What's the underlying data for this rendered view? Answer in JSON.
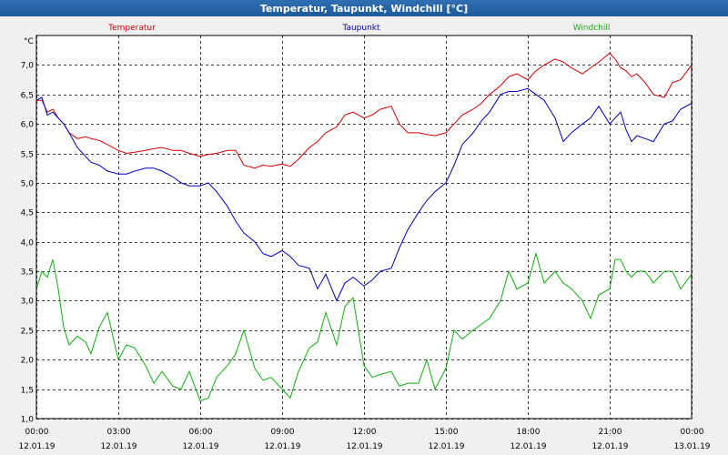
{
  "chart_data": {
    "type": "line",
    "title": "Temperatur, Taupunkt, Windchill [°C]",
    "ylabel": "°C",
    "ylim": [
      1.0,
      7.5
    ],
    "xlim_hours": [
      0,
      24
    ],
    "grid": true,
    "y_ticks": [
      "1,0",
      "1,5",
      "2,0",
      "2,5",
      "3,0",
      "3,5",
      "4,0",
      "4,5",
      "5,0",
      "5,5",
      "6,0",
      "6,5",
      "7,0"
    ],
    "y_tick_values": [
      1.0,
      1.5,
      2.0,
      2.5,
      3.0,
      3.5,
      4.0,
      4.5,
      5.0,
      5.5,
      6.0,
      6.5,
      7.0
    ],
    "x_ticks": [
      {
        "hour": 0,
        "time": "00:00",
        "date": "12.01.19"
      },
      {
        "hour": 3,
        "time": "03:00",
        "date": "12.01.19"
      },
      {
        "hour": 6,
        "time": "06:00",
        "date": "12.01.19"
      },
      {
        "hour": 9,
        "time": "09:00",
        "date": "12.01.19"
      },
      {
        "hour": 12,
        "time": "12:00",
        "date": "12.01.19"
      },
      {
        "hour": 15,
        "time": "15:00",
        "date": "12.01.19"
      },
      {
        "hour": 18,
        "time": "18:00",
        "date": "12.01.19"
      },
      {
        "hour": 21,
        "time": "21:00",
        "date": "12.01.19"
      },
      {
        "hour": 24,
        "time": "00:00",
        "date": "13.01.19"
      }
    ],
    "series": [
      {
        "name": "Temperatur",
        "color": "#d40000",
        "x": [
          0.0,
          0.2,
          0.4,
          0.6,
          0.8,
          1.0,
          1.2,
          1.5,
          1.8,
          2.0,
          2.3,
          2.6,
          3.0,
          3.3,
          3.6,
          4.0,
          4.3,
          4.6,
          5.0,
          5.3,
          5.6,
          6.0,
          6.3,
          6.6,
          7.0,
          7.3,
          7.6,
          8.0,
          8.3,
          8.6,
          9.0,
          9.3,
          9.6,
          10.0,
          10.3,
          10.6,
          11.0,
          11.3,
          11.6,
          12.0,
          12.3,
          12.6,
          13.0,
          13.3,
          13.6,
          14.0,
          14.3,
          14.6,
          15.0,
          15.3,
          15.6,
          16.0,
          16.3,
          16.6,
          17.0,
          17.3,
          17.6,
          18.0,
          18.3,
          18.6,
          19.0,
          19.3,
          19.6,
          20.0,
          20.3,
          20.6,
          21.0,
          21.2,
          21.4,
          21.6,
          21.8,
          22.0,
          22.3,
          22.6,
          23.0,
          23.3,
          23.6,
          24.0
        ],
        "values": [
          6.4,
          6.4,
          6.2,
          6.25,
          6.1,
          6.0,
          5.85,
          5.75,
          5.78,
          5.75,
          5.72,
          5.65,
          5.55,
          5.5,
          5.52,
          5.55,
          5.58,
          5.6,
          5.55,
          5.55,
          5.5,
          5.45,
          5.48,
          5.5,
          5.55,
          5.55,
          5.3,
          5.25,
          5.3,
          5.28,
          5.32,
          5.28,
          5.4,
          5.6,
          5.7,
          5.85,
          5.95,
          6.15,
          6.2,
          6.1,
          6.15,
          6.25,
          6.3,
          6.0,
          5.85,
          5.85,
          5.82,
          5.8,
          5.85,
          6.0,
          6.15,
          6.25,
          6.35,
          6.5,
          6.65,
          6.8,
          6.85,
          6.75,
          6.9,
          7.0,
          7.1,
          7.05,
          6.95,
          6.85,
          6.95,
          7.05,
          7.2,
          7.1,
          6.95,
          6.9,
          6.8,
          6.85,
          6.7,
          6.5,
          6.45,
          6.7,
          6.75,
          7.0
        ]
      },
      {
        "name": "Taupunkt",
        "color": "#0000c0",
        "x": [
          0.0,
          0.2,
          0.4,
          0.6,
          0.8,
          1.0,
          1.2,
          1.5,
          1.8,
          2.0,
          2.3,
          2.6,
          3.0,
          3.3,
          3.6,
          4.0,
          4.3,
          4.6,
          5.0,
          5.3,
          5.6,
          6.0,
          6.3,
          6.6,
          7.0,
          7.3,
          7.6,
          8.0,
          8.3,
          8.6,
          9.0,
          9.3,
          9.6,
          10.0,
          10.3,
          10.6,
          11.0,
          11.3,
          11.6,
          12.0,
          12.3,
          12.6,
          13.0,
          13.3,
          13.6,
          14.0,
          14.3,
          14.6,
          15.0,
          15.3,
          15.6,
          16.0,
          16.3,
          16.6,
          17.0,
          17.3,
          17.6,
          18.0,
          18.3,
          18.6,
          19.0,
          19.3,
          19.6,
          20.0,
          20.3,
          20.6,
          21.0,
          21.2,
          21.4,
          21.6,
          21.8,
          22.0,
          22.3,
          22.6,
          23.0,
          23.3,
          23.6,
          24.0
        ],
        "values": [
          6.4,
          6.45,
          6.15,
          6.2,
          6.1,
          6.0,
          5.85,
          5.6,
          5.45,
          5.35,
          5.3,
          5.2,
          5.15,
          5.15,
          5.2,
          5.25,
          5.25,
          5.2,
          5.1,
          5.0,
          4.95,
          4.95,
          5.0,
          4.85,
          4.6,
          4.35,
          4.15,
          4.0,
          3.8,
          3.75,
          3.85,
          3.75,
          3.6,
          3.55,
          3.2,
          3.45,
          3.0,
          3.3,
          3.4,
          3.25,
          3.35,
          3.5,
          3.55,
          3.9,
          4.2,
          4.5,
          4.7,
          4.85,
          5.0,
          5.3,
          5.65,
          5.85,
          6.05,
          6.2,
          6.5,
          6.55,
          6.55,
          6.6,
          6.5,
          6.4,
          6.1,
          5.7,
          5.85,
          6.0,
          6.1,
          6.3,
          6.0,
          6.1,
          6.2,
          5.9,
          5.7,
          5.8,
          5.75,
          5.7,
          6.0,
          6.05,
          6.25,
          6.35
        ]
      },
      {
        "name": "Windchill",
        "color": "#10b010",
        "x": [
          0.0,
          0.2,
          0.4,
          0.6,
          0.8,
          1.0,
          1.2,
          1.5,
          1.8,
          2.0,
          2.3,
          2.6,
          3.0,
          3.3,
          3.6,
          4.0,
          4.3,
          4.6,
          5.0,
          5.3,
          5.6,
          6.0,
          6.3,
          6.6,
          7.0,
          7.3,
          7.6,
          8.0,
          8.3,
          8.6,
          9.0,
          9.3,
          9.6,
          10.0,
          10.3,
          10.6,
          11.0,
          11.3,
          11.6,
          12.0,
          12.3,
          12.6,
          13.0,
          13.3,
          13.6,
          14.0,
          14.3,
          14.6,
          15.0,
          15.3,
          15.6,
          16.0,
          16.3,
          16.6,
          17.0,
          17.3,
          17.6,
          18.0,
          18.3,
          18.6,
          19.0,
          19.3,
          19.6,
          20.0,
          20.3,
          20.6,
          21.0,
          21.2,
          21.4,
          21.6,
          21.8,
          22.0,
          22.3,
          22.6,
          23.0,
          23.3,
          23.6,
          24.0
        ],
        "values": [
          3.2,
          3.5,
          3.4,
          3.7,
          3.2,
          2.55,
          2.25,
          2.4,
          2.3,
          2.1,
          2.55,
          2.8,
          2.0,
          2.25,
          2.2,
          1.9,
          1.6,
          1.8,
          1.55,
          1.5,
          1.8,
          1.3,
          1.35,
          1.7,
          1.9,
          2.1,
          2.5,
          1.85,
          1.65,
          1.7,
          1.5,
          1.35,
          1.8,
          2.2,
          2.3,
          2.8,
          2.25,
          2.9,
          3.05,
          1.9,
          1.7,
          1.75,
          1.8,
          1.55,
          1.6,
          1.6,
          2.0,
          1.5,
          1.85,
          2.5,
          2.35,
          2.5,
          2.6,
          2.7,
          3.0,
          3.5,
          3.2,
          3.3,
          3.8,
          3.3,
          3.5,
          3.3,
          3.2,
          3.0,
          2.7,
          3.1,
          3.2,
          3.7,
          3.7,
          3.5,
          3.4,
          3.5,
          3.5,
          3.3,
          3.5,
          3.5,
          3.2,
          3.45
        ]
      }
    ]
  }
}
